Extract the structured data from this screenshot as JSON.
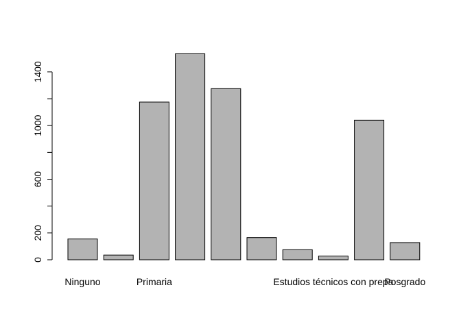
{
  "chart_data": {
    "type": "bar",
    "categories": [
      "Ninguno",
      "",
      "Primaria",
      "",
      "",
      "",
      "",
      "Estudios técnicos con prepa",
      "",
      "Posgrado"
    ],
    "values": [
      155,
      35,
      1175,
      1535,
      1275,
      165,
      75,
      28,
      1040,
      128
    ],
    "title": "",
    "xlabel": "",
    "ylabel": "",
    "ylim": [
      0,
      1550
    ],
    "y_ticks": [
      0,
      200,
      400,
      600,
      800,
      1000,
      1200,
      1400
    ],
    "y_tick_labels": [
      "0",
      "200",
      "",
      "600",
      "",
      "1000",
      "",
      "1400"
    ],
    "bar_color": "#b3b3b3",
    "grid": false
  }
}
